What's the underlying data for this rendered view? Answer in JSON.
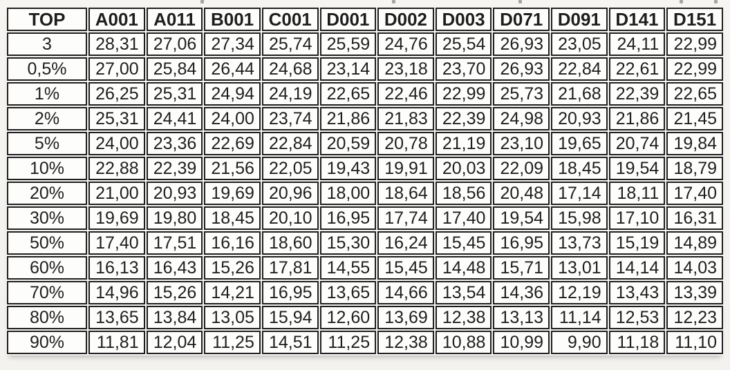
{
  "table": {
    "columns": [
      "TOP",
      "A001",
      "A011",
      "B001",
      "C001",
      "D001",
      "D002",
      "D003",
      "D071",
      "D091",
      "D141",
      "D151"
    ],
    "rows": [
      {
        "label": "3",
        "values": [
          "28,31",
          "27,06",
          "27,34",
          "25,74",
          "25,59",
          "24,76",
          "25,54",
          "26,93",
          "23,05",
          "24,11",
          "22,99"
        ]
      },
      {
        "label": "0,5%",
        "values": [
          "27,00",
          "25,84",
          "26,44",
          "24,68",
          "23,14",
          "23,18",
          "23,70",
          "26,93",
          "22,84",
          "22,61",
          "22,99"
        ]
      },
      {
        "label": "1%",
        "values": [
          "26,25",
          "25,31",
          "24,94",
          "24,19",
          "22,65",
          "22,46",
          "22,99",
          "25,73",
          "21,68",
          "22,39",
          "22,65"
        ]
      },
      {
        "label": "2%",
        "values": [
          "25,31",
          "24,41",
          "24,00",
          "23,74",
          "21,86",
          "21,83",
          "22,39",
          "24,98",
          "20,93",
          "21,86",
          "21,45"
        ]
      },
      {
        "label": "5%",
        "values": [
          "24,00",
          "23,36",
          "22,69",
          "22,84",
          "20,59",
          "20,78",
          "21,19",
          "23,10",
          "19,65",
          "20,74",
          "19,84"
        ]
      },
      {
        "label": "10%",
        "values": [
          "22,88",
          "22,39",
          "21,56",
          "22,05",
          "19,43",
          "19,91",
          "20,03",
          "22,09",
          "18,45",
          "19,54",
          "18,79"
        ]
      },
      {
        "label": "20%",
        "values": [
          "21,00",
          "20,93",
          "19,69",
          "20,96",
          "18,00",
          "18,64",
          "18,56",
          "20,48",
          "17,14",
          "18,11",
          "17,40"
        ]
      },
      {
        "label": "30%",
        "values": [
          "19,69",
          "19,80",
          "18,45",
          "20,10",
          "16,95",
          "17,74",
          "17,40",
          "19,54",
          "15,98",
          "17,10",
          "16,31"
        ]
      },
      {
        "label": "50%",
        "values": [
          "17,40",
          "17,51",
          "16,16",
          "18,60",
          "15,30",
          "16,24",
          "15,45",
          "16,95",
          "13,73",
          "15,19",
          "14,89"
        ]
      },
      {
        "label": "60%",
        "values": [
          "16,13",
          "16,43",
          "15,26",
          "17,81",
          "14,55",
          "15,45",
          "14,48",
          "15,71",
          "13,01",
          "14,14",
          "14,03"
        ]
      },
      {
        "label": "70%",
        "values": [
          "14,96",
          "15,26",
          "14,21",
          "16,95",
          "13,65",
          "14,66",
          "13,54",
          "14,36",
          "12,19",
          "13,43",
          "13,39"
        ]
      },
      {
        "label": "80%",
        "values": [
          "13,65",
          "13,84",
          "13,05",
          "15,94",
          "12,60",
          "13,69",
          "12,38",
          "13,13",
          "11,14",
          "12,53",
          "12,23"
        ]
      },
      {
        "label": "90%",
        "values": [
          "11,81",
          "12,04",
          "11,25",
          "14,51",
          "11,25",
          "12,38",
          "10,88",
          "10,99",
          "9,90",
          "11,18",
          "11,10"
        ]
      }
    ],
    "text_color": "#1e1e1e",
    "border_color": "#1f1f1f",
    "cell_background": "#fdfdfc",
    "page_background": "#f5f4f1"
  }
}
